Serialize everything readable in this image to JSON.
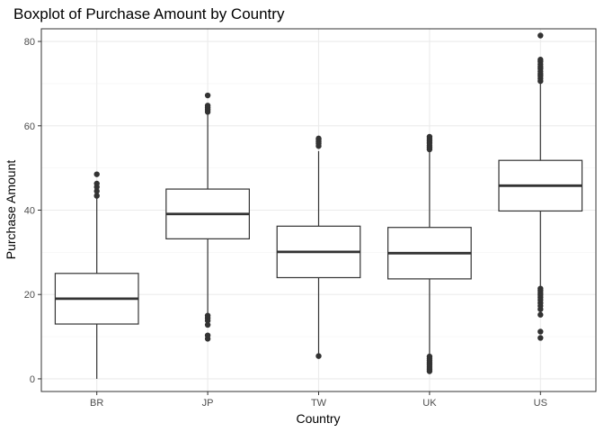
{
  "chart_data": {
    "type": "boxplot",
    "title": "Boxplot of Purchase Amount by Country",
    "xlabel": "Country",
    "ylabel": "Purchase Amount",
    "ylim": [
      -3,
      83
    ],
    "yticks": [
      0,
      20,
      40,
      60,
      80
    ],
    "ytick_labels": [
      "0",
      "20",
      "40",
      "60",
      "80"
    ],
    "grid": true,
    "categories": [
      "BR",
      "JP",
      "TW",
      "UK",
      "US"
    ],
    "boxes": [
      {
        "category": "BR",
        "min": 0,
        "q1": 13,
        "median": 19,
        "q3": 25,
        "max": 43,
        "outliers": [
          43.4,
          44.5,
          45.5,
          46.3,
          48.5
        ]
      },
      {
        "category": "JP",
        "min": 15.5,
        "q1": 33.2,
        "median": 39.1,
        "q3": 45,
        "max": 62.8,
        "outliers": [
          9.5,
          10.3,
          12.8,
          13.8,
          14.4,
          15.0,
          63.3,
          63.8,
          64.3,
          64.8,
          67.2
        ]
      },
      {
        "category": "TW",
        "min": 6,
        "q1": 24,
        "median": 30.1,
        "q3": 36.2,
        "max": 54,
        "outliers": [
          5.4,
          55.2,
          55.8,
          56.3,
          56.8,
          57.0
        ]
      },
      {
        "category": "UK",
        "min": 5.8,
        "q1": 23.7,
        "median": 29.8,
        "q3": 35.9,
        "max": 54,
        "outliers": [
          1.8,
          2.3,
          2.8,
          3.3,
          3.8,
          4.3,
          4.8,
          5.3,
          54.4,
          54.9,
          55.4,
          55.9,
          56.4,
          56.9,
          57.4
        ]
      },
      {
        "category": "US",
        "min": 22,
        "q1": 39.8,
        "median": 45.8,
        "q3": 51.8,
        "max": 70,
        "outliers": [
          9.7,
          11.2,
          15.2,
          16.5,
          17.3,
          18.0,
          18.7,
          19.3,
          19.9,
          20.4,
          20.9,
          21.4,
          70.6,
          71.2,
          71.8,
          72.3,
          72.9,
          73.5,
          74.0,
          74.6,
          75.2,
          75.7,
          81.4
        ]
      }
    ]
  }
}
